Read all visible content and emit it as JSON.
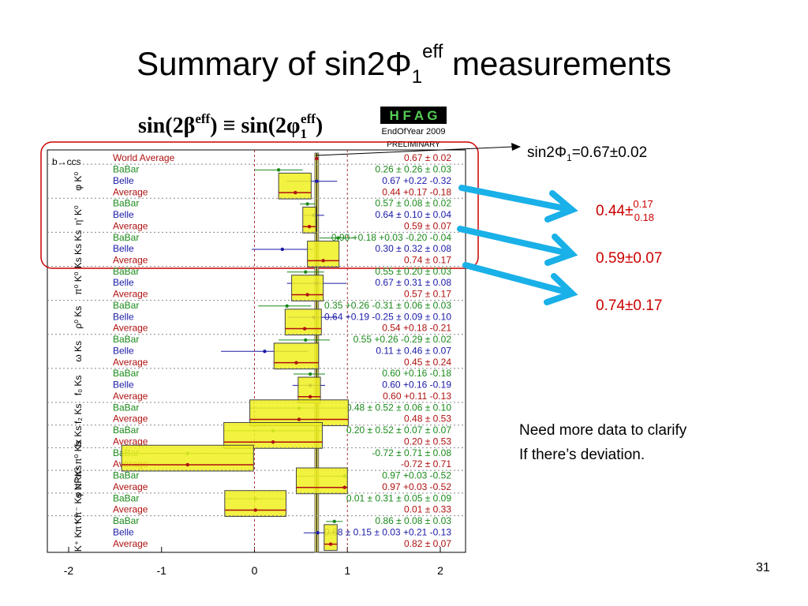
{
  "title": {
    "main": "Summary of sin2Φ",
    "sub": "1",
    "sup": "eff",
    "rest": " measurements"
  },
  "formula": {
    "left": "sin(2β",
    "left_sup": "eff",
    "mid": ") ≡ sin(2φ",
    "right_sub": "1",
    "right_sup": "eff",
    "end": ")"
  },
  "logo": {
    "name": "H F A G",
    "edition": "EndOfYear 2009",
    "status": "PRELIMINARY"
  },
  "plot": {
    "channel": "b→ccs",
    "xlim": [
      -2,
      2
    ],
    "xticks": [
      -2,
      -1,
      0,
      1,
      2
    ],
    "world": {
      "experiment": "World Average",
      "result": "0.67 ± 0.02",
      "value": 0.67,
      "minus": 0.02,
      "plus": 0.02
    },
    "groups": [
      {
        "label": "φ K⁰",
        "rows": [
          {
            "experiment": "BaBar",
            "result": "0.26 ± 0.26 ± 0.03",
            "value": 0.26,
            "minus": 0.26,
            "plus": 0.26
          },
          {
            "experiment": "Belle",
            "result": "0.67 +0.22 -0.32",
            "value": 0.67,
            "minus": 0.32,
            "plus": 0.22
          },
          {
            "experiment": "Average",
            "result": "0.44 +0.17 -0.18",
            "value": 0.44,
            "minus": 0.18,
            "plus": 0.17
          }
        ]
      },
      {
        "label": "η′ K⁰",
        "rows": [
          {
            "experiment": "BaBar",
            "result": "0.57 ± 0.08 ± 0.02",
            "value": 0.57,
            "minus": 0.08,
            "plus": 0.08
          },
          {
            "experiment": "Belle",
            "result": "0.64 ± 0.10 ± 0.04",
            "value": 0.64,
            "minus": 0.11,
            "plus": 0.11
          },
          {
            "experiment": "Average",
            "result": "0.59 ± 0.07",
            "value": 0.59,
            "minus": 0.07,
            "plus": 0.07
          }
        ]
      },
      {
        "label": "Ks Ks Ks",
        "rows": [
          {
            "experiment": "BaBar",
            "result": "0.90 +0.18 +0.03 -0.20 -0.04",
            "value": 0.9,
            "minus": 0.2,
            "plus": 0.18
          },
          {
            "experiment": "Belle",
            "result": "0.30 ± 0.32 ± 0.08",
            "value": 0.3,
            "minus": 0.33,
            "plus": 0.33
          },
          {
            "experiment": "Average",
            "result": "0.74 ± 0.17",
            "value": 0.74,
            "minus": 0.17,
            "plus": 0.17
          }
        ]
      },
      {
        "label": "π⁰ K⁰",
        "rows": [
          {
            "experiment": "BaBar",
            "result": "0.55 ± 0.20 ± 0.03",
            "value": 0.55,
            "minus": 0.2,
            "plus": 0.2
          },
          {
            "experiment": "Belle",
            "result": "0.67 ± 0.31 ± 0.08",
            "value": 0.67,
            "minus": 0.32,
            "plus": 0.32
          },
          {
            "experiment": "Average",
            "result": "0.57 ± 0.17",
            "value": 0.57,
            "minus": 0.17,
            "plus": 0.17
          }
        ]
      },
      {
        "label": "ρ⁰ Ks",
        "rows": [
          {
            "experiment": "BaBar",
            "result": "0.35 +0.26 -0.31 ± 0.06 ± 0.03",
            "value": 0.35,
            "minus": 0.31,
            "plus": 0.26
          },
          {
            "experiment": "Belle",
            "result": "0.64 +0.19 -0.25 ± 0.09 ± 0.10",
            "value": 0.64,
            "minus": 0.28,
            "plus": 0.24
          },
          {
            "experiment": "Average",
            "result": "0.54 +0.18 -0.21",
            "value": 0.54,
            "minus": 0.21,
            "plus": 0.18
          }
        ]
      },
      {
        "label": "ω Ks",
        "rows": [
          {
            "experiment": "BaBar",
            "result": "0.55 +0.26 -0.29 ± 0.02",
            "value": 0.55,
            "minus": 0.29,
            "plus": 0.26
          },
          {
            "experiment": "Belle",
            "result": "0.11 ± 0.46 ± 0.07",
            "value": 0.11,
            "minus": 0.47,
            "plus": 0.47
          },
          {
            "experiment": "Average",
            "result": "0.45 ± 0.24",
            "value": 0.45,
            "minus": 0.24,
            "plus": 0.24
          }
        ]
      },
      {
        "label": "f₀ Ks",
        "rows": [
          {
            "experiment": "BaBar",
            "result": "0.60 +0.16 -0.18",
            "value": 0.6,
            "minus": 0.18,
            "plus": 0.16
          },
          {
            "experiment": "Belle",
            "result": "0.60 +0.16 -0.19",
            "value": 0.6,
            "minus": 0.19,
            "plus": 0.16
          },
          {
            "experiment": "Average",
            "result": "0.60 +0.11 -0.13",
            "value": 0.6,
            "minus": 0.13,
            "plus": 0.11
          }
        ]
      },
      {
        "label": "f₂ Ks",
        "rows": [
          {
            "experiment": "BaBar",
            "result": "0.48 ± 0.52 ± 0.06 ± 0.10",
            "value": 0.48,
            "minus": 0.53,
            "plus": 0.53
          },
          {
            "experiment": "Average",
            "result": "0.48 ± 0.53",
            "value": 0.48,
            "minus": 0.53,
            "plus": 0.53
          }
        ]
      },
      {
        "label": "fx Ks",
        "rows": [
          {
            "experiment": "BaBar",
            "result": "0.20 ± 0.52 ± 0.07 ± 0.07",
            "value": 0.2,
            "minus": 0.53,
            "plus": 0.53
          },
          {
            "experiment": "Average",
            "result": "0.20 ± 0.53",
            "value": 0.2,
            "minus": 0.53,
            "plus": 0.53
          }
        ]
      },
      {
        "label": "π⁰ π⁰ Ks",
        "rows": [
          {
            "experiment": "BaBar",
            "result": "-0.72 ± 0.71 ± 0.08",
            "value": -0.72,
            "minus": 0.71,
            "plus": 0.71
          },
          {
            "experiment": "Average",
            "result": "-0.72 ± 0.71",
            "value": -0.72,
            "minus": 0.71,
            "plus": 0.71
          }
        ]
      },
      {
        "label": "φ π⁰ Ks",
        "rows": [
          {
            "experiment": "BaBar",
            "result": "0.97 +0.03 -0.52",
            "value": 0.97,
            "minus": 0.52,
            "plus": 0.03
          },
          {
            "experiment": "Average",
            "result": "0.97 +0.03 -0.52",
            "value": 0.97,
            "minus": 0.52,
            "plus": 0.03
          }
        ]
      },
      {
        "label": "π⁺ π⁻ Ks NR",
        "rows": [
          {
            "experiment": "BaBar",
            "result": "0.01 ± 0.31 ± 0.05 ± 0.09",
            "value": 0.01,
            "minus": 0.33,
            "plus": 0.33
          },
          {
            "experiment": "Average",
            "result": "0.01 ± 0.33",
            "value": 0.01,
            "minus": 0.33,
            "plus": 0.33
          }
        ]
      },
      {
        "label": "K⁺ K⁻ K⁰",
        "rows": [
          {
            "experiment": "BaBar",
            "result": "0.86 ± 0.08 ± 0.03",
            "value": 0.86,
            "minus": 0.09,
            "plus": 0.09
          },
          {
            "experiment": "Belle",
            "result": "0.68 ± 0.15 ± 0.03 +0.21 -0.13",
            "value": 0.68,
            "minus": 0.15,
            "plus": 0.21
          },
          {
            "experiment": "Average",
            "result": "0.82 ± 0.07",
            "value": 0.82,
            "minus": 0.07,
            "plus": 0.07
          }
        ]
      }
    ]
  },
  "callouts": {
    "world": {
      "text": "sin2Φ",
      "sub": "1",
      "rest": "=0.67±0.02"
    },
    "items": [
      {
        "main": "0.44±",
        "sup": "0.17",
        "sub": "0.18"
      },
      {
        "main": "0.59±0.07"
      },
      {
        "main": "0.74±0.17"
      }
    ]
  },
  "note": [
    "Need more data to clarify",
    "If there’s deviation."
  ],
  "page_number": "31"
}
